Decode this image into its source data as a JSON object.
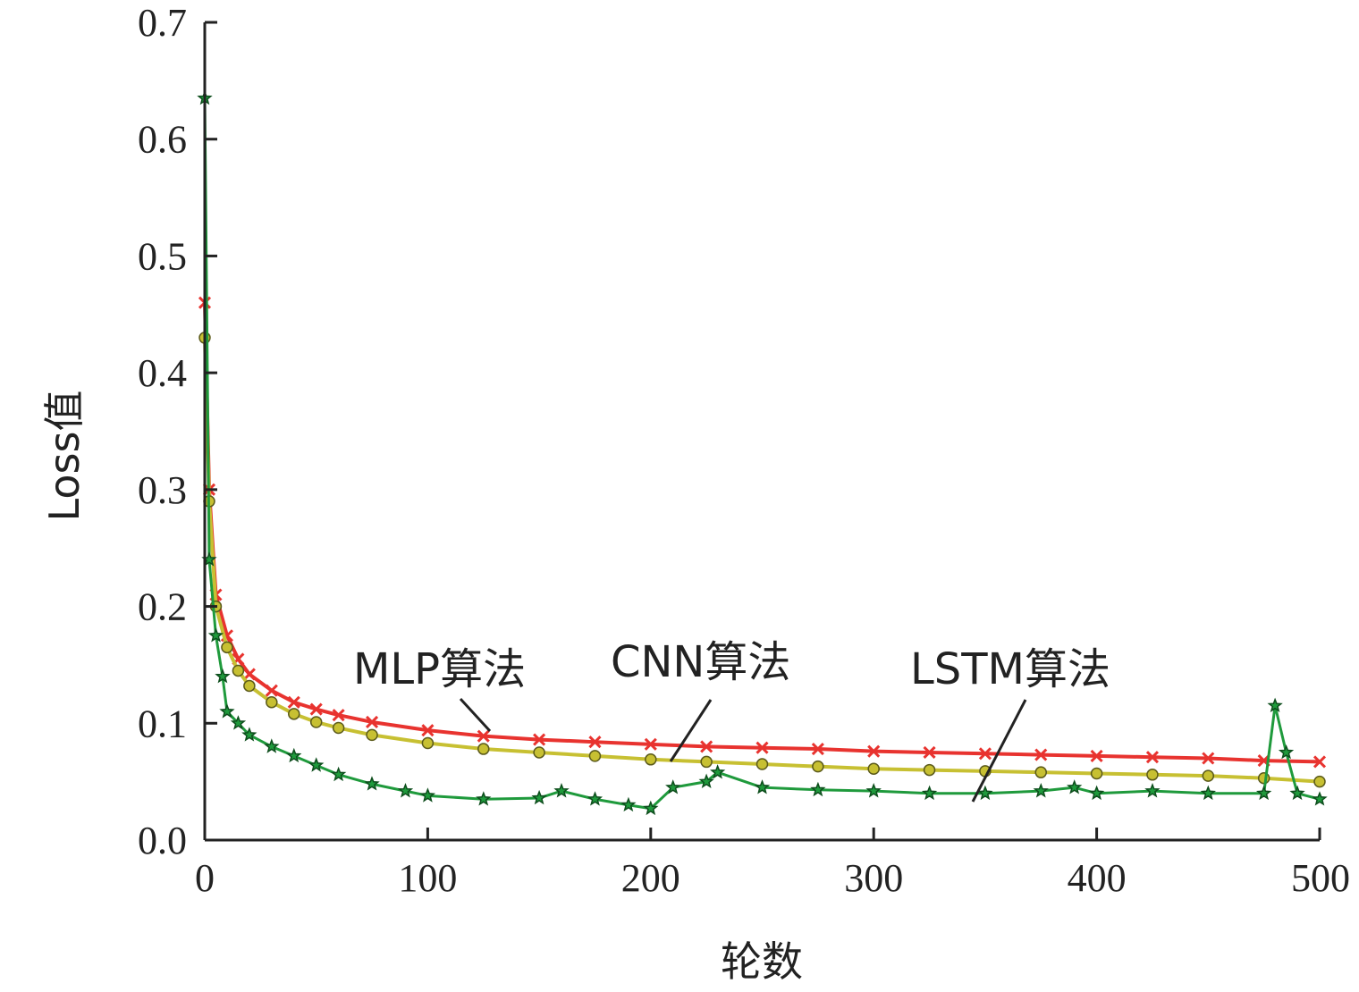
{
  "chart_data": {
    "type": "line",
    "title": "",
    "xlabel": "轮数",
    "ylabel": "Loss值",
    "xlim": [
      0,
      500
    ],
    "ylim": [
      0,
      0.7
    ],
    "x_ticks": [
      "0",
      "100",
      "200",
      "300",
      "400",
      "500"
    ],
    "y_ticks": [
      "0.0",
      "0.1",
      "0.2",
      "0.3",
      "0.4",
      "0.5",
      "0.6",
      "0.7"
    ],
    "grid": false,
    "legend": "none",
    "series": [
      {
        "name": "MLP算法",
        "color": "#e8332f",
        "marker": "x",
        "x": [
          0,
          2,
          5,
          10,
          15,
          20,
          30,
          40,
          50,
          60,
          75,
          100,
          125,
          150,
          175,
          200,
          225,
          250,
          275,
          300,
          325,
          350,
          375,
          400,
          425,
          450,
          475,
          500
        ],
        "values": [
          0.46,
          0.3,
          0.21,
          0.175,
          0.155,
          0.142,
          0.128,
          0.118,
          0.112,
          0.107,
          0.101,
          0.094,
          0.089,
          0.086,
          0.084,
          0.082,
          0.08,
          0.079,
          0.078,
          0.076,
          0.075,
          0.074,
          0.073,
          0.072,
          0.071,
          0.07,
          0.068,
          0.067
        ]
      },
      {
        "name": "CNN算法",
        "color": "#c7c032",
        "marker": "circle",
        "x": [
          0,
          2,
          5,
          10,
          15,
          20,
          30,
          40,
          50,
          60,
          75,
          100,
          125,
          150,
          175,
          200,
          225,
          250,
          275,
          300,
          325,
          350,
          375,
          400,
          425,
          450,
          475,
          500
        ],
        "values": [
          0.43,
          0.29,
          0.2,
          0.165,
          0.145,
          0.132,
          0.118,
          0.108,
          0.101,
          0.096,
          0.09,
          0.083,
          0.078,
          0.075,
          0.072,
          0.069,
          0.067,
          0.065,
          0.063,
          0.061,
          0.06,
          0.059,
          0.058,
          0.057,
          0.056,
          0.055,
          0.053,
          0.05
        ]
      },
      {
        "name": "LSTM算法",
        "color": "#1f9a3c",
        "marker": "star",
        "x": [
          0,
          2,
          5,
          8,
          10,
          15,
          20,
          30,
          40,
          50,
          60,
          75,
          90,
          100,
          125,
          150,
          160,
          175,
          190,
          200,
          210,
          225,
          230,
          250,
          275,
          300,
          325,
          350,
          375,
          390,
          400,
          425,
          450,
          475,
          480,
          485,
          490,
          500
        ],
        "values": [
          0.635,
          0.24,
          0.175,
          0.14,
          0.11,
          0.1,
          0.09,
          0.08,
          0.072,
          0.064,
          0.056,
          0.048,
          0.042,
          0.038,
          0.035,
          0.036,
          0.042,
          0.035,
          0.03,
          0.027,
          0.045,
          0.05,
          0.058,
          0.045,
          0.043,
          0.042,
          0.04,
          0.04,
          0.042,
          0.045,
          0.04,
          0.042,
          0.04,
          0.04,
          0.115,
          0.075,
          0.04,
          0.035
        ]
      }
    ],
    "annotations": [
      "MLP算法",
      "CNN算法",
      "LSTM算法"
    ]
  }
}
